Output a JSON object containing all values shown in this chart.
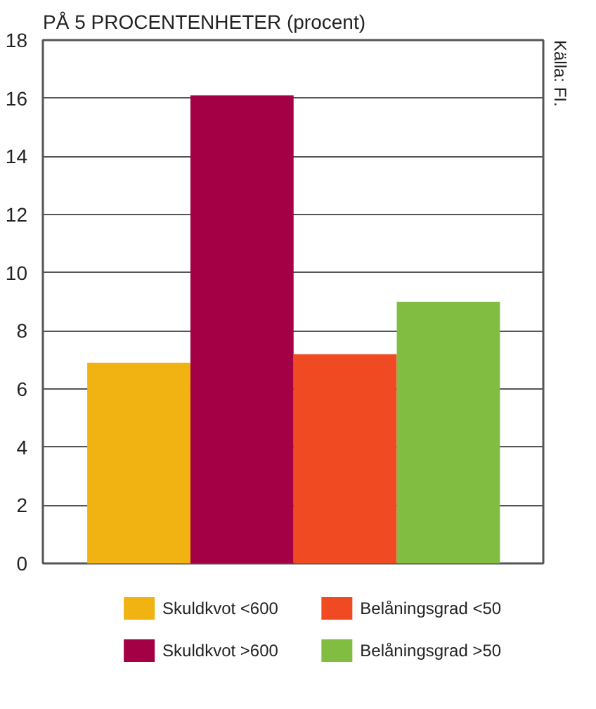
{
  "chart_data": {
    "type": "bar",
    "title": "PÅ 5 PROCENTENHETER (procent)",
    "categories": [
      null
    ],
    "series": [
      {
        "name": "Skuldkvot <600",
        "color": "#f0b311",
        "values": [
          6.9
        ]
      },
      {
        "name": "Skuldkvot >600",
        "color": "#a30046",
        "values": [
          16.1
        ]
      },
      {
        "name": "Belåningsgrad <50",
        "color": "#f04a23",
        "values": [
          7.2
        ]
      },
      {
        "name": "Belåningsgrad >50",
        "color": "#80bd41",
        "values": [
          9.0
        ]
      }
    ],
    "ylim": [
      0,
      18
    ],
    "yticks": [
      0,
      2,
      4,
      6,
      8,
      10,
      12,
      14,
      16,
      18
    ],
    "grid": "y",
    "legend": "bottom",
    "tick_labels": "y",
    "annotations": [
      "Källa: FI."
    ]
  }
}
